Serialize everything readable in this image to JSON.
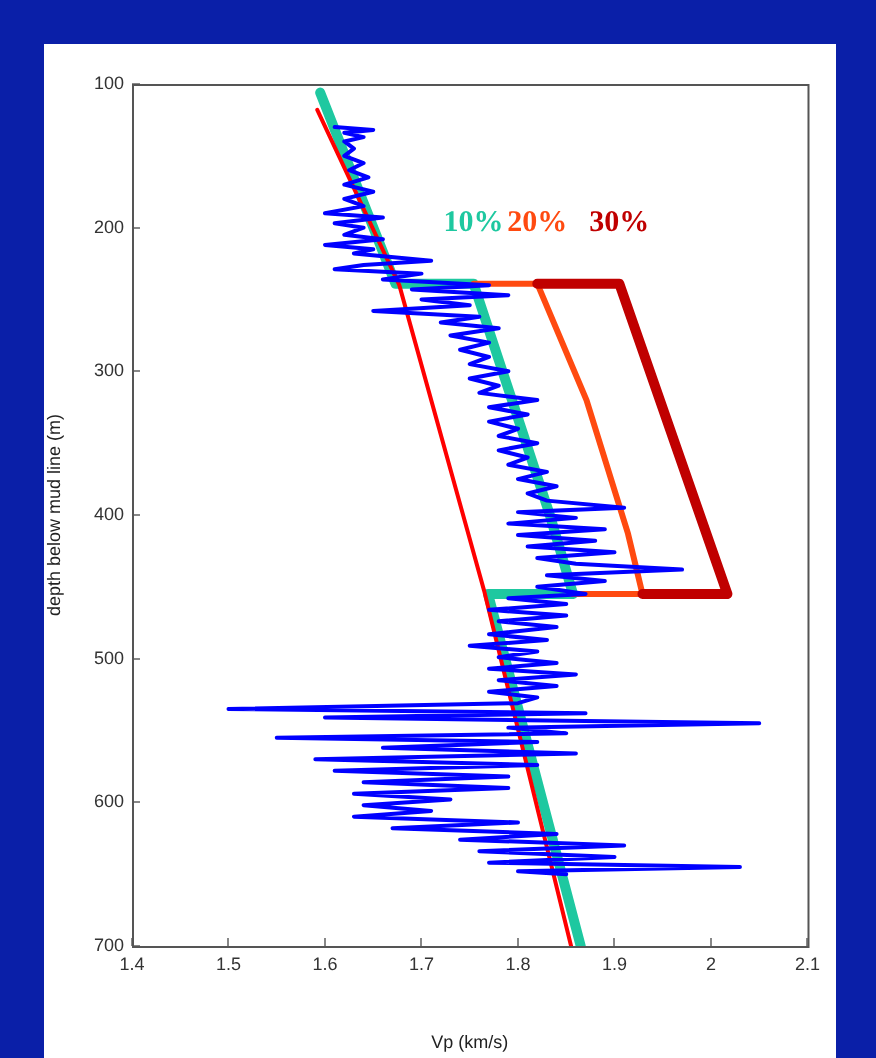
{
  "chart_data": {
    "type": "line",
    "xlabel": "Vp (km/s)",
    "ylabel": "depth below mud line (m)",
    "xlim": [
      1.4,
      2.1
    ],
    "xticks": [
      1.4,
      1.5,
      1.6,
      1.7,
      1.8,
      1.9,
      2,
      2.1
    ],
    "ylim": [
      700,
      100
    ],
    "yticks": [
      100,
      200,
      300,
      400,
      500,
      600,
      700
    ],
    "grid": false,
    "legend": false,
    "marker": "none",
    "line_style": "solid",
    "series": [
      {
        "color": "#0000ff",
        "x": [
          1.61,
          1.65,
          1.62,
          1.64,
          1.62,
          1.63,
          1.62,
          1.64,
          1.625,
          1.645,
          1.62,
          1.65,
          1.62,
          1.64,
          1.6,
          1.66,
          1.61,
          1.64,
          1.62,
          1.66,
          1.6,
          1.65,
          1.63,
          1.71,
          1.64,
          1.61,
          1.7,
          1.66,
          1.77,
          1.69,
          1.79,
          1.7,
          1.75,
          1.65,
          1.76,
          1.72,
          1.78,
          1.73,
          1.77,
          1.74,
          1.77,
          1.75,
          1.79,
          1.75,
          1.78,
          1.76,
          1.82,
          1.77,
          1.81,
          1.77,
          1.8,
          1.78,
          1.82,
          1.78,
          1.81,
          1.79,
          1.83,
          1.8,
          1.84,
          1.81,
          1.83,
          1.91,
          1.8,
          1.86,
          1.79,
          1.89,
          1.8,
          1.88,
          1.81,
          1.9,
          1.82,
          1.86,
          1.97,
          1.83,
          1.89,
          1.82,
          1.87,
          1.79,
          1.85,
          1.77,
          1.85,
          1.78,
          1.84,
          1.77,
          1.83,
          1.75,
          1.82,
          1.78,
          1.84,
          1.77,
          1.86,
          1.78,
          1.84,
          1.77,
          1.82,
          1.8,
          1.5,
          1.87,
          1.6,
          2.05,
          1.79,
          1.85,
          1.55,
          1.82,
          1.66,
          1.86,
          1.59,
          1.82,
          1.61,
          1.79,
          1.64,
          1.79,
          1.63,
          1.73,
          1.64,
          1.71,
          1.63,
          1.8,
          1.67,
          1.84,
          1.74,
          1.91,
          1.76,
          1.9,
          1.77,
          2.03,
          1.8,
          1.85
        ],
        "values": [
          130,
          132,
          134,
          137,
          140,
          145,
          150,
          155,
          160,
          165,
          170,
          175,
          180,
          185,
          190,
          193,
          197,
          200,
          205,
          208,
          212,
          215,
          218,
          223,
          226,
          229,
          232,
          236,
          240,
          243,
          247,
          250,
          254,
          258,
          262,
          266,
          270,
          275,
          280,
          285,
          290,
          295,
          300,
          305,
          310,
          315,
          320,
          325,
          330,
          335,
          340,
          345,
          350,
          355,
          360,
          365,
          370,
          375,
          380,
          385,
          390,
          395,
          398,
          402,
          406,
          410,
          414,
          418,
          422,
          426,
          430,
          434,
          438,
          442,
          446,
          450,
          455,
          458,
          462,
          466,
          470,
          474,
          478,
          483,
          487,
          491,
          495,
          499,
          503,
          507,
          511,
          515,
          519,
          523,
          527,
          531,
          535,
          538,
          541,
          545,
          548,
          552,
          555,
          558,
          562,
          566,
          570,
          574,
          578,
          582,
          586,
          590,
          594,
          598,
          602,
          606,
          610,
          614,
          618,
          622,
          626,
          630,
          634,
          638,
          642,
          645,
          648,
          650
        ]
      },
      {
        "color": "#ff0000",
        "x": [
          1.592,
          1.677,
          1.765,
          1.855
        ],
        "values": [
          118,
          240,
          453,
          700
        ]
      },
      {
        "name": "30%",
        "color": "#c00000",
        "x": [
          1.82,
          1.905,
          2.017,
          1.929
        ],
        "values": [
          239,
          239,
          455,
          455
        ]
      },
      {
        "name": "20%",
        "color": "#ff4a10",
        "x": [
          1.754,
          1.82,
          1.871,
          1.914,
          1.929,
          1.857
        ],
        "values": [
          239,
          239,
          320,
          413,
          455,
          455
        ]
      },
      {
        "name": "10%",
        "color": "#1ec8a0",
        "x": [
          1.595,
          1.673,
          1.754,
          1.833,
          1.857,
          1.769,
          1.865
        ],
        "values": [
          106,
          239,
          239,
          400,
          455,
          455,
          700
        ]
      }
    ]
  }
}
